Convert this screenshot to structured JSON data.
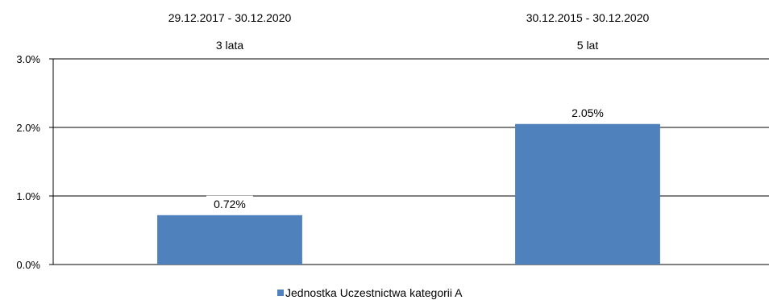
{
  "chart_data": {
    "type": "bar",
    "categories": [
      {
        "period": "29.12.2017 - 30.12.2020",
        "duration": "3 lata"
      },
      {
        "period": "30.12.2015 - 30.12.2020",
        "duration": "5 lat"
      }
    ],
    "series": [
      {
        "name": "Jednostka Uczestnictwa kategorii A",
        "values": [
          0.72,
          2.05
        ],
        "labels": [
          "0.72%",
          "2.05%"
        ],
        "color": "#4f81bd"
      }
    ],
    "ylim": [
      0,
      3
    ],
    "yticks": [
      {
        "value": 0,
        "label": "0.0%"
      },
      {
        "value": 1,
        "label": "1.0%"
      },
      {
        "value": 2,
        "label": "2.0%"
      },
      {
        "value": 3,
        "label": "3.0%"
      }
    ],
    "grid": true,
    "legend_position": "bottom"
  }
}
